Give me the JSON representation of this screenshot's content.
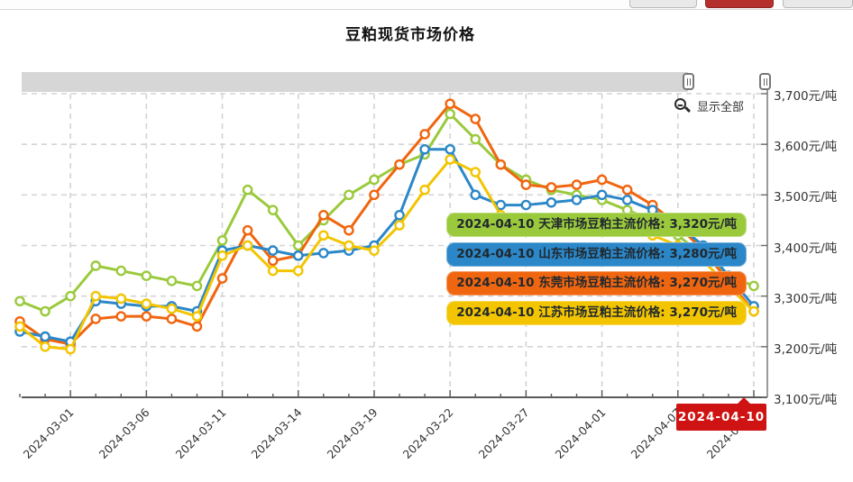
{
  "window": {
    "buttons": [
      {
        "name": "toolbar-button-left",
        "color": "#e9e9e9"
      },
      {
        "name": "toolbar-button-red",
        "color": "#b5302d"
      },
      {
        "name": "toolbar-button-right",
        "color": "#e9e9e9"
      }
    ]
  },
  "title": "豆粕现货市场价格",
  "controls": {
    "show_all_label": "显示全部",
    "zoom_out_icon": "magnifier-minus-icon",
    "range_slider": {
      "handles": 2
    }
  },
  "y_axis": {
    "unit": "元/吨",
    "labels": [
      "3,700元/吨",
      "3,600元/吨",
      "3,500元/吨",
      "3,400元/吨",
      "3,300元/吨",
      "3,200元/吨",
      "3,100元/吨"
    ]
  },
  "x_axis": {
    "tick_labels": [
      "2024-03-01",
      "2024-03-06",
      "2024-03-11",
      "2024-03-14",
      "2024-03-19",
      "2024-03-22",
      "2024-03-27",
      "2024-04-01",
      "2024-04-07",
      "2024-04-10"
    ],
    "highlight": {
      "label": "2024-04-10",
      "color": "#cf1312",
      "text_color": "#ffffff"
    }
  },
  "tooltips": [
    {
      "text": "2024-04-10 天津市场豆粕主流价格: 3,320元/吨",
      "color": "#9aca3c"
    },
    {
      "text": "2024-04-10 山东市场豆粕主流价格: 3,280元/吨",
      "color": "#2b87c8"
    },
    {
      "text": "2024-04-10 东莞市场豆粕主流价格: 3,270元/吨",
      "color": "#f0650f"
    },
    {
      "text": "2024-04-10 江苏市场豆粕主流价格: 3,270元/吨",
      "color": "#f2c500"
    }
  ],
  "chart_data": {
    "type": "line",
    "title": "豆粕现货市场价格",
    "ylabel": "元/吨",
    "ylim": [
      3100,
      3700
    ],
    "ytick_step": 100,
    "grid": "dashed",
    "marker": "open-circle",
    "x": [
      "2024-02-28",
      "2024-02-29",
      "2024-03-01",
      "2024-03-04",
      "2024-03-05",
      "2024-03-06",
      "2024-03-07",
      "2024-03-08",
      "2024-03-11",
      "2024-03-12",
      "2024-03-13",
      "2024-03-14",
      "2024-03-15",
      "2024-03-18",
      "2024-03-19",
      "2024-03-20",
      "2024-03-21",
      "2024-03-22",
      "2024-03-25",
      "2024-03-26",
      "2024-03-27",
      "2024-03-28",
      "2024-03-29",
      "2024-04-01",
      "2024-04-02",
      "2024-04-03",
      "2024-04-07",
      "2024-04-08",
      "2024-04-09",
      "2024-04-10"
    ],
    "series": [
      {
        "name": "天津市场豆粕主流价格",
        "color": "#9aca3c",
        "values": [
          3290,
          3270,
          3300,
          3360,
          3350,
          3340,
          3330,
          3320,
          3410,
          3510,
          3470,
          3400,
          3450,
          3500,
          3530,
          3560,
          3580,
          3660,
          3610,
          3560,
          3530,
          3510,
          3500,
          3490,
          3470,
          3450,
          3420,
          3380,
          3340,
          3320
        ]
      },
      {
        "name": "东莞市场豆粕主流价格",
        "color": "#f0650f",
        "values": [
          3250,
          3215,
          3205,
          3255,
          3260,
          3260,
          3255,
          3240,
          3335,
          3430,
          3370,
          3380,
          3460,
          3430,
          3500,
          3560,
          3620,
          3680,
          3650,
          3560,
          3520,
          3515,
          3520,
          3530,
          3510,
          3480,
          3440,
          3390,
          3330,
          3270
        ]
      },
      {
        "name": "山东市场豆粕主流价格",
        "color": "#2b87c8",
        "values": [
          3230,
          3220,
          3210,
          3290,
          3285,
          3280,
          3280,
          3270,
          3390,
          3400,
          3390,
          3380,
          3385,
          3390,
          3400,
          3460,
          3590,
          3590,
          3500,
          3480,
          3480,
          3485,
          3490,
          3500,
          3490,
          3470,
          3440,
          3400,
          3340,
          3280
        ]
      },
      {
        "name": "江苏市场豆粕主流价格",
        "color": "#f2c500",
        "values": [
          3240,
          3200,
          3195,
          3300,
          3295,
          3285,
          3275,
          3260,
          3380,
          3400,
          3350,
          3350,
          3420,
          3400,
          3390,
          3440,
          3510,
          3570,
          3545,
          3460,
          3440,
          3430,
          3440,
          3450,
          3440,
          3420,
          3400,
          3370,
          3320,
          3270
        ]
      }
    ],
    "final_values": {
      "天津": 3320,
      "山东": 3280,
      "东莞": 3270,
      "江苏": 3270
    }
  }
}
